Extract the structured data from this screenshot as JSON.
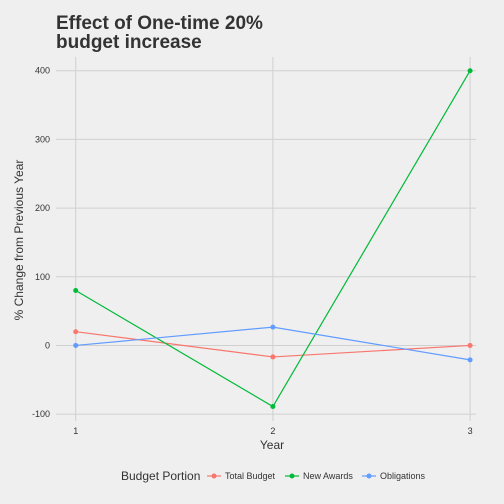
{
  "chart_data": {
    "type": "line",
    "title_lines": [
      "Effect of One-time 20%",
      "budget increase"
    ],
    "xlabel": "Year",
    "ylabel": "% Change from Previous Year",
    "x": [
      1,
      2,
      3
    ],
    "x_ticks": [
      "1",
      "2",
      "3"
    ],
    "y_ticks": [
      "-100",
      "0",
      "100",
      "200",
      "300",
      "400"
    ],
    "y_tick_values": [
      -100,
      0,
      100,
      200,
      300,
      400
    ],
    "xlim": [
      0.9,
      3.03
    ],
    "ylim": [
      -110,
      420
    ],
    "grid": true,
    "legend": {
      "title": "Budget Portion",
      "position": "bottom"
    },
    "series": [
      {
        "name": "Total Budget",
        "color": "#f8766d",
        "values": [
          20,
          -16.7,
          0
        ]
      },
      {
        "name": "New Awards",
        "color": "#00ba38",
        "values": [
          80,
          -88.9,
          400
        ]
      },
      {
        "name": "Obligations",
        "color": "#619cff",
        "values": [
          0,
          26.7,
          -21
        ]
      }
    ]
  }
}
